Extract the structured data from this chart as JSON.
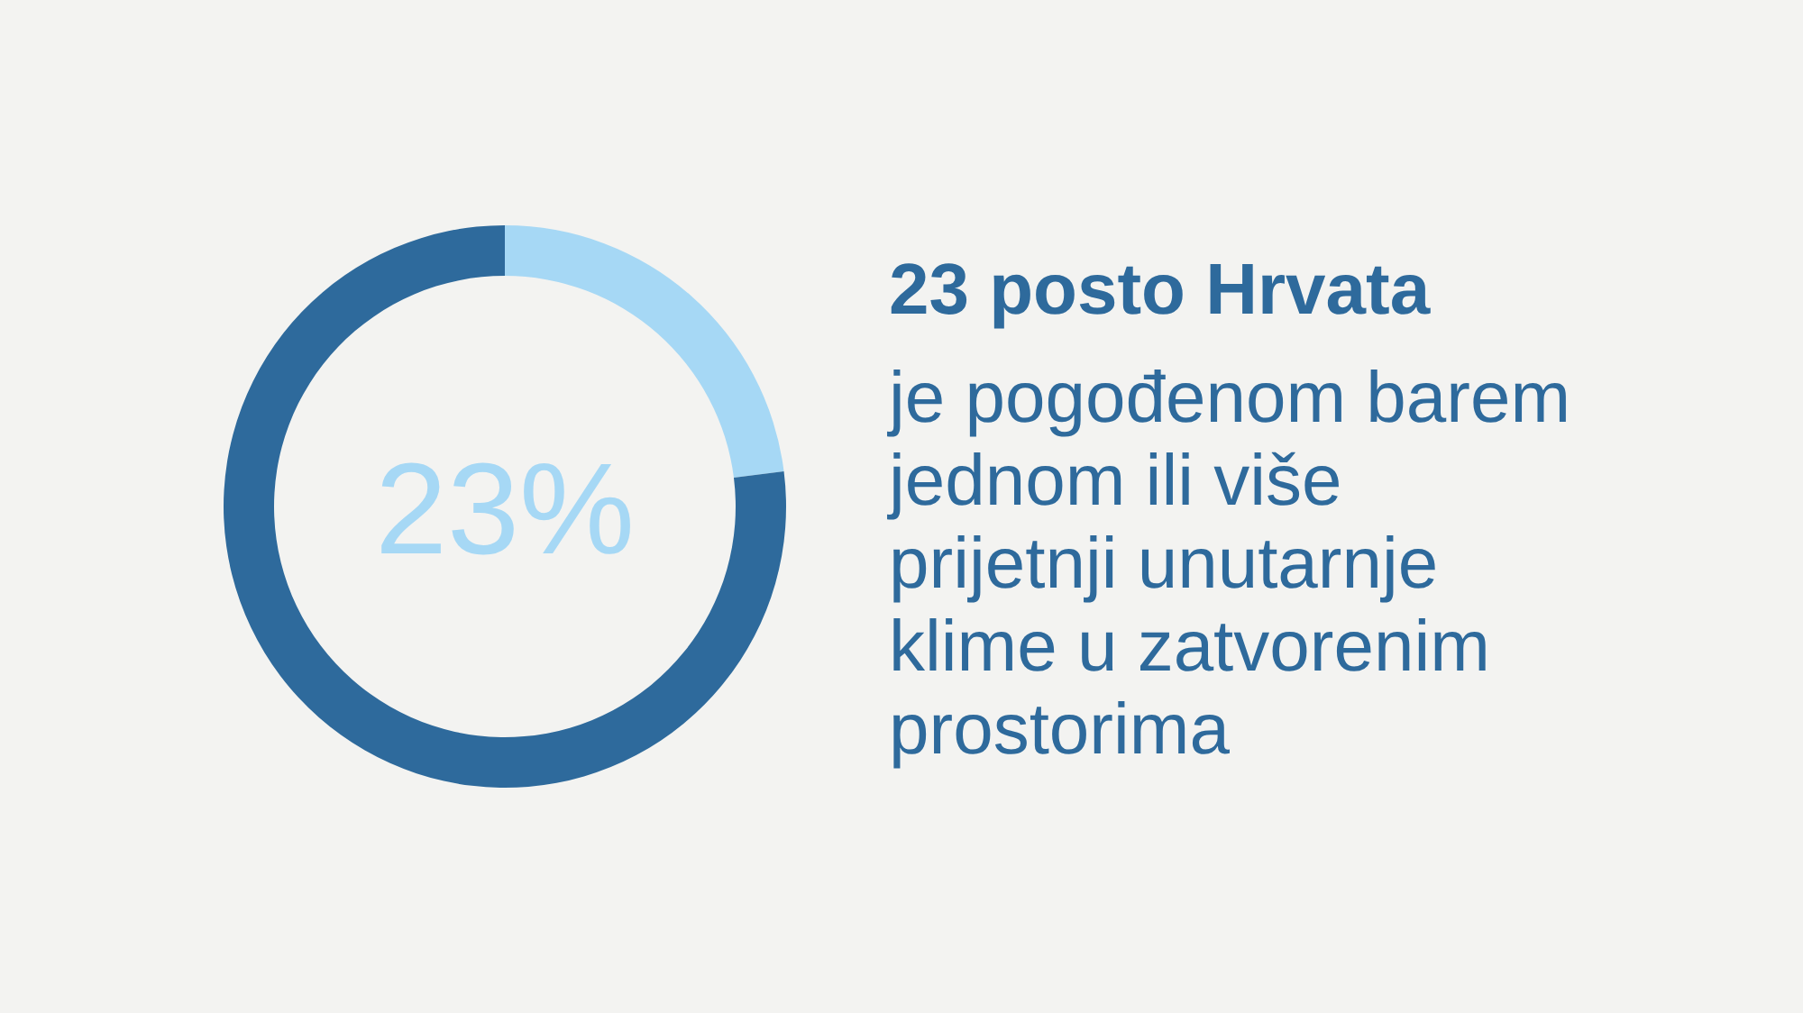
{
  "chart_data": {
    "type": "donut",
    "title": "23 posto Hrvata",
    "subtitle": "je pogođenom barem jednom ili više prijetnji unutarnje klime u zatvorenim prostorima",
    "categories": [
      null,
      null
    ],
    "values": [
      23,
      77
    ],
    "colors": [
      "#a6d8f5",
      "#2e6a9c"
    ],
    "annotations": [
      "23%"
    ]
  }
}
